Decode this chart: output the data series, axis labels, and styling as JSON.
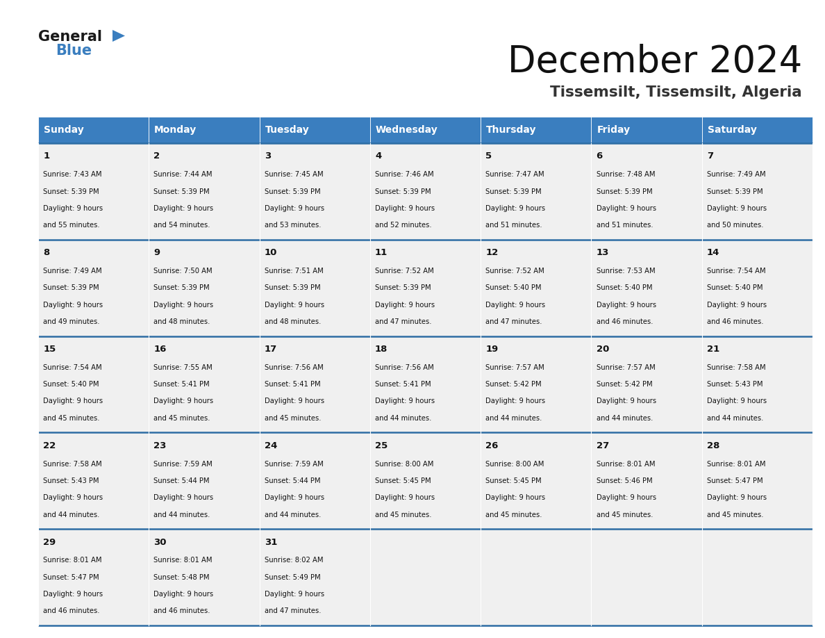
{
  "title": "December 2024",
  "subtitle": "Tissemsilt, Tissemsilt, Algeria",
  "header_color": "#3a7ebf",
  "header_text_color": "#ffffff",
  "cell_bg_color": "#f0f0f0",
  "border_color": "#2e6da4",
  "text_color": "#111111",
  "days_of_week": [
    "Sunday",
    "Monday",
    "Tuesday",
    "Wednesday",
    "Thursday",
    "Friday",
    "Saturday"
  ],
  "calendar_data": [
    [
      {
        "day": "1",
        "sunrise": "7:43 AM",
        "sunset": "5:39 PM",
        "daylight_h": "9 hours",
        "daylight_m": "and 55 minutes."
      },
      {
        "day": "2",
        "sunrise": "7:44 AM",
        "sunset": "5:39 PM",
        "daylight_h": "9 hours",
        "daylight_m": "and 54 minutes."
      },
      {
        "day": "3",
        "sunrise": "7:45 AM",
        "sunset": "5:39 PM",
        "daylight_h": "9 hours",
        "daylight_m": "and 53 minutes."
      },
      {
        "day": "4",
        "sunrise": "7:46 AM",
        "sunset": "5:39 PM",
        "daylight_h": "9 hours",
        "daylight_m": "and 52 minutes."
      },
      {
        "day": "5",
        "sunrise": "7:47 AM",
        "sunset": "5:39 PM",
        "daylight_h": "9 hours",
        "daylight_m": "and 51 minutes."
      },
      {
        "day": "6",
        "sunrise": "7:48 AM",
        "sunset": "5:39 PM",
        "daylight_h": "9 hours",
        "daylight_m": "and 51 minutes."
      },
      {
        "day": "7",
        "sunrise": "7:49 AM",
        "sunset": "5:39 PM",
        "daylight_h": "9 hours",
        "daylight_m": "and 50 minutes."
      }
    ],
    [
      {
        "day": "8",
        "sunrise": "7:49 AM",
        "sunset": "5:39 PM",
        "daylight_h": "9 hours",
        "daylight_m": "and 49 minutes."
      },
      {
        "day": "9",
        "sunrise": "7:50 AM",
        "sunset": "5:39 PM",
        "daylight_h": "9 hours",
        "daylight_m": "and 48 minutes."
      },
      {
        "day": "10",
        "sunrise": "7:51 AM",
        "sunset": "5:39 PM",
        "daylight_h": "9 hours",
        "daylight_m": "and 48 minutes."
      },
      {
        "day": "11",
        "sunrise": "7:52 AM",
        "sunset": "5:39 PM",
        "daylight_h": "9 hours",
        "daylight_m": "and 47 minutes."
      },
      {
        "day": "12",
        "sunrise": "7:52 AM",
        "sunset": "5:40 PM",
        "daylight_h": "9 hours",
        "daylight_m": "and 47 minutes."
      },
      {
        "day": "13",
        "sunrise": "7:53 AM",
        "sunset": "5:40 PM",
        "daylight_h": "9 hours",
        "daylight_m": "and 46 minutes."
      },
      {
        "day": "14",
        "sunrise": "7:54 AM",
        "sunset": "5:40 PM",
        "daylight_h": "9 hours",
        "daylight_m": "and 46 minutes."
      }
    ],
    [
      {
        "day": "15",
        "sunrise": "7:54 AM",
        "sunset": "5:40 PM",
        "daylight_h": "9 hours",
        "daylight_m": "and 45 minutes."
      },
      {
        "day": "16",
        "sunrise": "7:55 AM",
        "sunset": "5:41 PM",
        "daylight_h": "9 hours",
        "daylight_m": "and 45 minutes."
      },
      {
        "day": "17",
        "sunrise": "7:56 AM",
        "sunset": "5:41 PM",
        "daylight_h": "9 hours",
        "daylight_m": "and 45 minutes."
      },
      {
        "day": "18",
        "sunrise": "7:56 AM",
        "sunset": "5:41 PM",
        "daylight_h": "9 hours",
        "daylight_m": "and 44 minutes."
      },
      {
        "day": "19",
        "sunrise": "7:57 AM",
        "sunset": "5:42 PM",
        "daylight_h": "9 hours",
        "daylight_m": "and 44 minutes."
      },
      {
        "day": "20",
        "sunrise": "7:57 AM",
        "sunset": "5:42 PM",
        "daylight_h": "9 hours",
        "daylight_m": "and 44 minutes."
      },
      {
        "day": "21",
        "sunrise": "7:58 AM",
        "sunset": "5:43 PM",
        "daylight_h": "9 hours",
        "daylight_m": "and 44 minutes."
      }
    ],
    [
      {
        "day": "22",
        "sunrise": "7:58 AM",
        "sunset": "5:43 PM",
        "daylight_h": "9 hours",
        "daylight_m": "and 44 minutes."
      },
      {
        "day": "23",
        "sunrise": "7:59 AM",
        "sunset": "5:44 PM",
        "daylight_h": "9 hours",
        "daylight_m": "and 44 minutes."
      },
      {
        "day": "24",
        "sunrise": "7:59 AM",
        "sunset": "5:44 PM",
        "daylight_h": "9 hours",
        "daylight_m": "and 44 minutes."
      },
      {
        "day": "25",
        "sunrise": "8:00 AM",
        "sunset": "5:45 PM",
        "daylight_h": "9 hours",
        "daylight_m": "and 45 minutes."
      },
      {
        "day": "26",
        "sunrise": "8:00 AM",
        "sunset": "5:45 PM",
        "daylight_h": "9 hours",
        "daylight_m": "and 45 minutes."
      },
      {
        "day": "27",
        "sunrise": "8:01 AM",
        "sunset": "5:46 PM",
        "daylight_h": "9 hours",
        "daylight_m": "and 45 minutes."
      },
      {
        "day": "28",
        "sunrise": "8:01 AM",
        "sunset": "5:47 PM",
        "daylight_h": "9 hours",
        "daylight_m": "and 45 minutes."
      }
    ],
    [
      {
        "day": "29",
        "sunrise": "8:01 AM",
        "sunset": "5:47 PM",
        "daylight_h": "9 hours",
        "daylight_m": "and 46 minutes."
      },
      {
        "day": "30",
        "sunrise": "8:01 AM",
        "sunset": "5:48 PM",
        "daylight_h": "9 hours",
        "daylight_m": "and 46 minutes."
      },
      {
        "day": "31",
        "sunrise": "8:02 AM",
        "sunset": "5:49 PM",
        "daylight_h": "9 hours",
        "daylight_m": "and 47 minutes."
      },
      null,
      null,
      null,
      null
    ]
  ]
}
